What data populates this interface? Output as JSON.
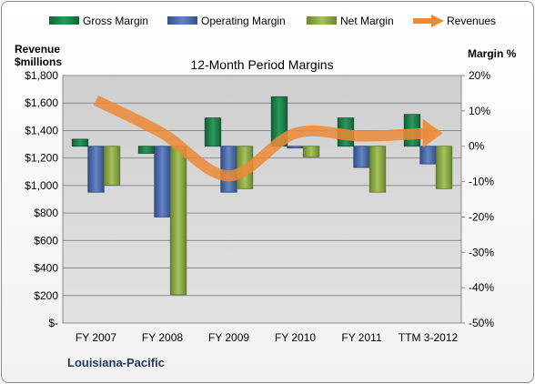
{
  "chart_data": {
    "type": "bar",
    "title": "12-Month Period Margins",
    "categories": [
      "FY 2007",
      "FY 2008",
      "FY 2009",
      "FY 2010",
      "FY 2011",
      "TTM 3-2012"
    ],
    "series": [
      {
        "name": "Gross Margin",
        "axis": "right",
        "values": [
          2,
          -2,
          8,
          14,
          8,
          9
        ]
      },
      {
        "name": "Operating Margin",
        "axis": "right",
        "values": [
          -13,
          -20,
          -13,
          -0.5,
          -6,
          -5
        ]
      },
      {
        "name": "Net Margin",
        "axis": "right",
        "values": [
          -11,
          -42,
          -12,
          -3,
          -13,
          -12
        ]
      },
      {
        "name": "Revenues",
        "type": "line",
        "axis": "left",
        "values": [
          1620,
          1380,
          1070,
          1380,
          1360,
          1380
        ]
      }
    ],
    "ylabel_left": "Revenue $millions",
    "ylabel_right": "Margin %",
    "ylim_left": [
      0,
      1800
    ],
    "ylim_right": [
      -50,
      20
    ],
    "left_ticks": [
      "$-",
      "$200",
      "$400",
      "$600",
      "$800",
      "$1,000",
      "$1,200",
      "$1,400",
      "$1,600",
      "$1,800"
    ],
    "right_ticks": [
      "-50%",
      "-40%",
      "-30%",
      "-20%",
      "-10%",
      "0%",
      "10%",
      "20%"
    ],
    "legend_position": "top",
    "grid": true,
    "colors": {
      "Gross Margin": "#1e7d45",
      "Operating Margin": "#4a6aa8",
      "Net Margin": "#86a540",
      "Revenues": "#ec8a35",
      "plot_background": "#d6d6d6"
    }
  },
  "legend": {
    "gross": "Gross Margin",
    "operating": "Operating Margin",
    "net": "Net Margin",
    "revenues": "Revenues"
  },
  "left_axis_title": {
    "line1": "Revenue",
    "line2": "$millions"
  },
  "right_axis_title": "Margin %",
  "footer": {
    "company": "Louisiana-Pacific"
  }
}
